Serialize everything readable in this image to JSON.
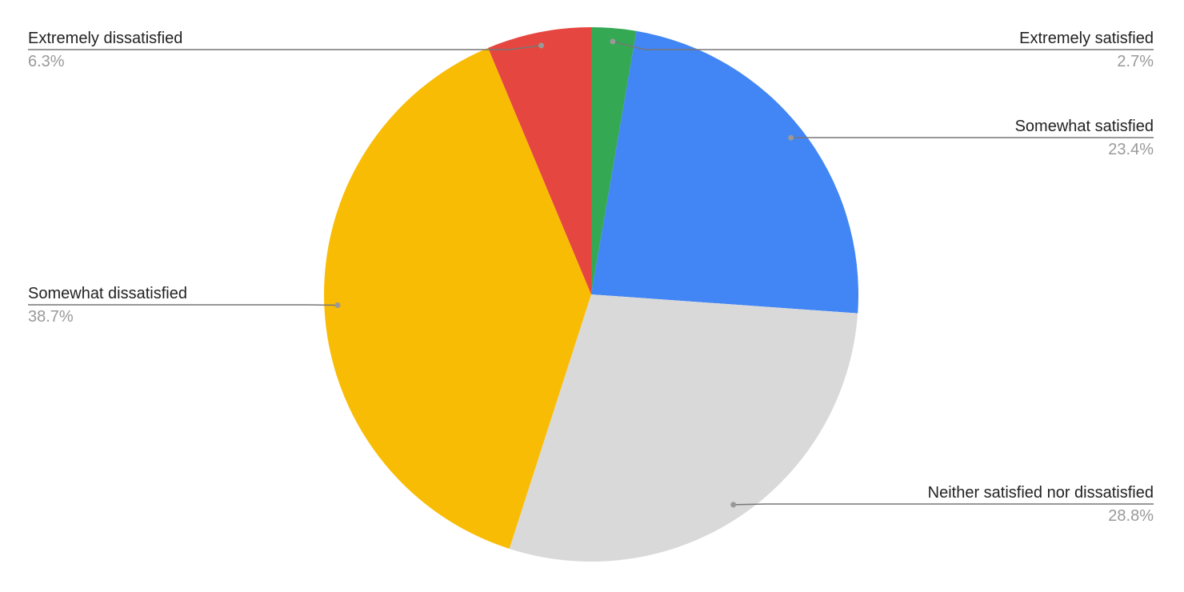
{
  "chart_data": {
    "type": "pie",
    "title": "",
    "start_angle": "top, clockwise",
    "slices": [
      {
        "label": "Extremely satisfied",
        "value": 2.7,
        "value_label": "2.7%",
        "color": "#34a853"
      },
      {
        "label": "Somewhat satisfied",
        "value": 23.4,
        "value_label": "23.4%",
        "color": "#4285f4"
      },
      {
        "label": "Neither satisfied nor dissatisfied",
        "value": 28.8,
        "value_label": "28.8%",
        "color": "#d9d9d9"
      },
      {
        "label": "Somewhat dissatisfied",
        "value": 38.7,
        "value_label": "38.7%",
        "color": "#f9bc05"
      },
      {
        "label": "Extremely dissatisfied",
        "value": 6.3,
        "value_label": "6.3%",
        "color": "#e64640"
      }
    ],
    "legend": "labeled leader lines"
  }
}
